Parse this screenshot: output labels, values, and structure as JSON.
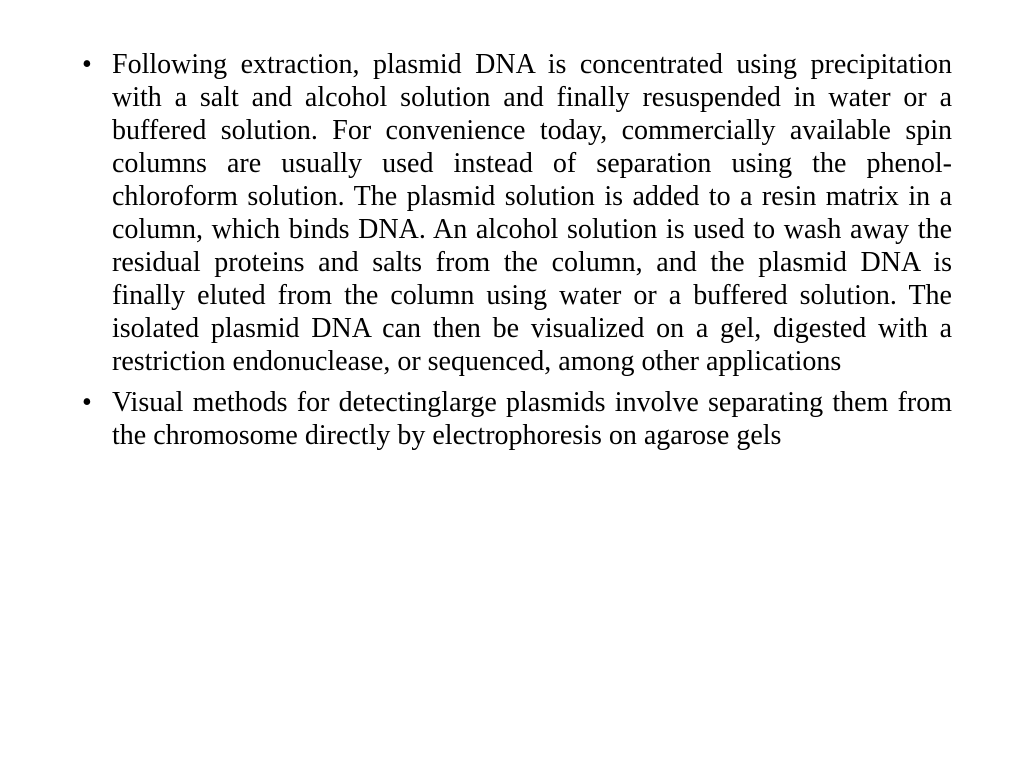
{
  "slide": {
    "background_color": "#ffffff",
    "text_color": "#000000",
    "font_family": "Times New Roman",
    "font_size_pt": 28,
    "text_align": "justify",
    "line_height": 1.18,
    "bullets": [
      {
        "text": "Following extraction, plasmid DNA is concentrated using precipitation with a salt and alcohol solution and finally resuspended in water or a buffered solution. For convenience today, commercially available spin columns are usually used instead of separation using the phenol-chloroform solution. The plasmid solution is added to a resin matrix in a column, which binds DNA. An alcohol solution is used to wash away the residual proteins and salts from the column, and the plasmid DNA is finally eluted from the column using water or a buffered solution. The isolated plasmid DNA can then be visualized on a gel, digested with a restriction endonuclease, or sequenced, among other applications"
      },
      {
        "text": " Visual methods for detectinglarge plasmids involve separating them from the chromosome directly by electrophoresis on agarose gels"
      }
    ]
  }
}
